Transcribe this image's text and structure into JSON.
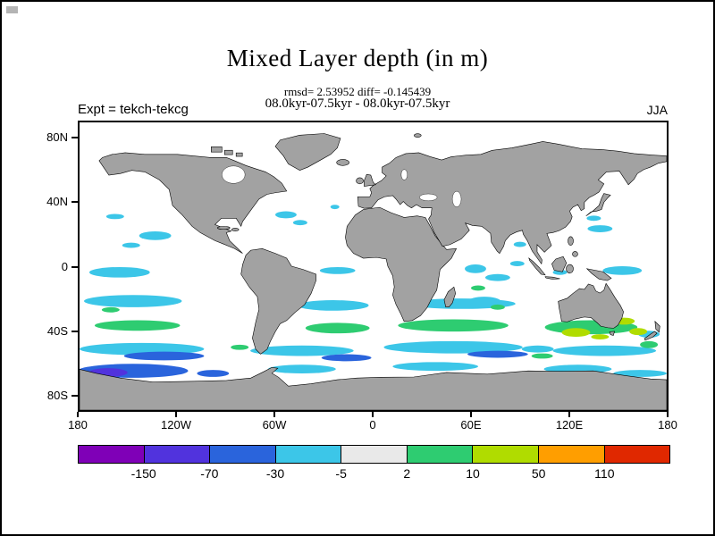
{
  "page": {
    "background": "#ffffff",
    "frame_color": "#000000"
  },
  "header": {
    "title": "Mixed Layer depth (in m)",
    "stats_line": "rmsd= 2.53952 diff= -0.145439",
    "comparison_line": "08.0kyr-07.5kyr - 08.0kyr-07.5kyr",
    "experiment_label": "Expt = tekch-tekcg",
    "season_label": "JJA"
  },
  "map": {
    "land_color": "#a2a2a2",
    "ocean_color": "#ffffff",
    "coast_color": "#000000",
    "lat_ticks": [
      "80N",
      "40N",
      "0",
      "40S",
      "80S"
    ],
    "lon_ticks": [
      "180",
      "120W",
      "60W",
      "0",
      "60E",
      "120E",
      "180"
    ]
  },
  "colorbar": {
    "colors": [
      "#7f00b7",
      "#5133dd",
      "#2a64dc",
      "#3cc6e8",
      "#e9e9e9",
      "#2ecc71",
      "#b0dc00",
      "#ff9e00",
      "#e02800"
    ],
    "tick_labels": [
      "-150",
      "-70",
      "-30",
      "-5",
      "2",
      "10",
      "50",
      "110"
    ]
  },
  "chart_data": {
    "type": "heatmap",
    "title": "Mixed Layer depth (in m)",
    "units": "m",
    "statistics": {
      "rmsd": 2.53952,
      "diff": -0.145439
    },
    "comparison": "08.0kyr-07.5kyr - 08.0kyr-07.5kyr",
    "experiment": "tekch-tekcg",
    "season": "JJA",
    "projection": "equirectangular global map, 180W to 180E, 90S to 90N",
    "x_axis": {
      "label": "longitude",
      "tick_labels": [
        "180",
        "120W",
        "60W",
        "0",
        "60E",
        "120E",
        "180"
      ]
    },
    "y_axis": {
      "label": "latitude",
      "tick_labels": [
        "80N",
        "40N",
        "0",
        "40S",
        "80S"
      ]
    },
    "color_levels": [
      -150,
      -70,
      -30,
      -5,
      2,
      10,
      50,
      110
    ],
    "color_segments": [
      "#7f00b7",
      "#5133dd",
      "#2a64dc",
      "#3cc6e8",
      "#e9e9e9",
      "#2ecc71",
      "#b0dc00",
      "#ff9e00",
      "#e02800"
    ],
    "features": [
      "near-zero differences (white / light gray) over most northern hemisphere oceans",
      "scattered cyan patches (-30 to -5 m) in the tropical and subtropical Pacific, Atlantic and Indian Oceans",
      "broad cyan and blue streaks (-70 to -5 m) circling the Southern Ocean between 40S and 65S",
      "strongly negative band (blue to blue-violet, below -70 m) along the Antarctic coast in the southeast Pacific / Ross sector",
      "green to yellow-green patches (+2 to +50 m) south of Africa, across the south Indian Ocean and around southern Australia, Tasman Sea and New Zealand",
      "continents and Antarctica masked in gray"
    ]
  }
}
